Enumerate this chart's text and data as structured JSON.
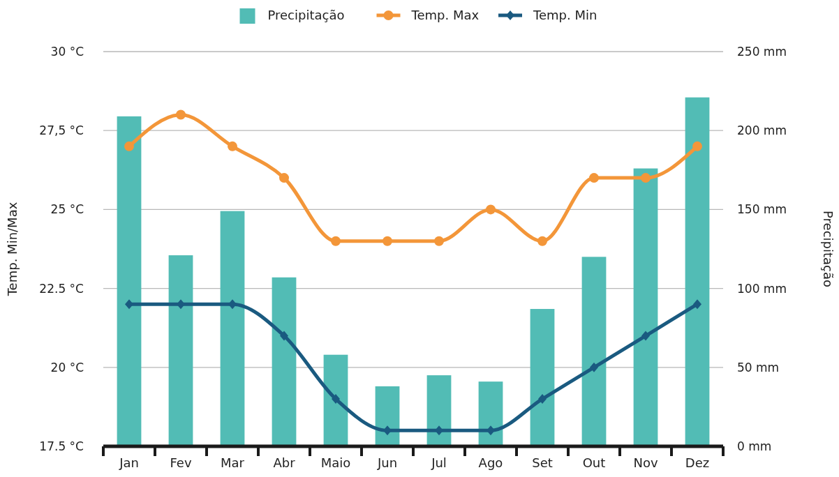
{
  "chart_data": {
    "type": "bar",
    "categories": [
      "Jan",
      "Fev",
      "Mar",
      "Abr",
      "Maio",
      "Jun",
      "Jul",
      "Ago",
      "Set",
      "Out",
      "Nov",
      "Dez"
    ],
    "series": [
      {
        "name": "Precipitação",
        "axis": "y2",
        "color": "#52bcb5",
        "values": [
          209,
          121,
          149,
          107,
          58,
          38,
          45,
          41,
          87,
          120,
          176,
          221
        ]
      },
      {
        "name": "Temp. Max",
        "type": "line",
        "color": "#f39639",
        "marker": "circle",
        "values": [
          27,
          28,
          27,
          26,
          24,
          24,
          24,
          25,
          24,
          26,
          26,
          27
        ]
      },
      {
        "name": "Temp. Min",
        "type": "line",
        "color": "#1a5a80",
        "marker": "diamond",
        "values": [
          22,
          22,
          22,
          21,
          19,
          18,
          18,
          18,
          19,
          20,
          21,
          22
        ]
      }
    ],
    "ylabel": "Temp. Min/Max",
    "y2label": "Precipitação",
    "ylim": [
      17.5,
      30
    ],
    "yticks": [
      {
        "value": 17.5,
        "label": "17.5 °C"
      },
      {
        "value": 20,
        "label": "20 °C"
      },
      {
        "value": 22.5,
        "label": "22.5 °C"
      },
      {
        "value": 25,
        "label": "25 °C"
      },
      {
        "value": 27.5,
        "label": "27,5 °C"
      },
      {
        "value": 30,
        "label": "30 °C"
      }
    ],
    "y2lim": [
      0,
      250
    ],
    "y2ticks": [
      {
        "value": 0,
        "label": "0 mm"
      },
      {
        "value": 50,
        "label": "50 mm"
      },
      {
        "value": 100,
        "label": "100 mm"
      },
      {
        "value": 150,
        "label": "150 mm"
      },
      {
        "value": 200,
        "label": "200 mm"
      },
      {
        "value": 250,
        "label": "250 mm"
      }
    ],
    "grid": "y",
    "legend": "top"
  }
}
